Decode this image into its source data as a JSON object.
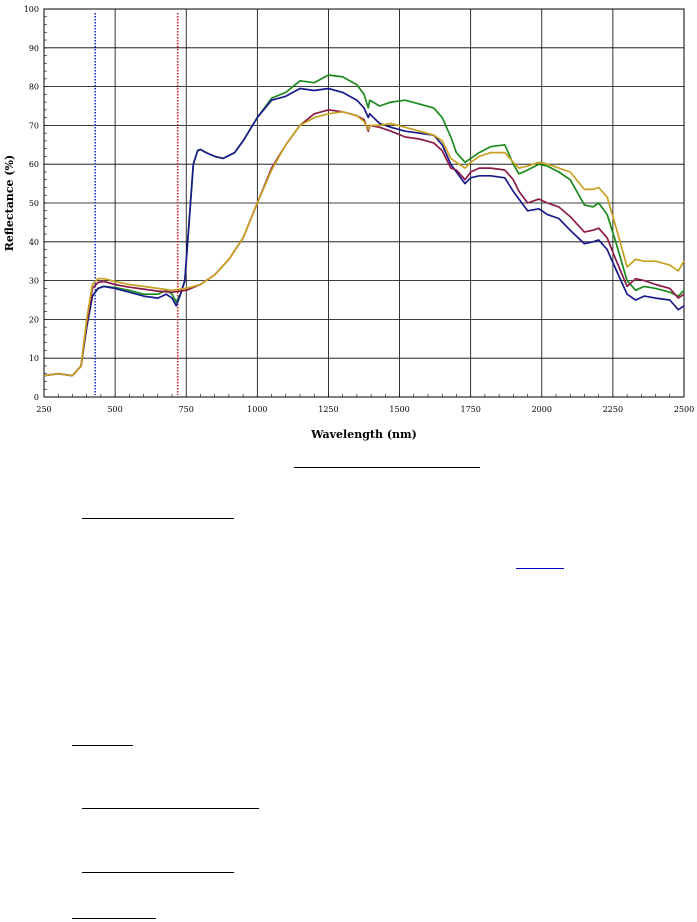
{
  "chart_data": {
    "type": "line",
    "title": "",
    "xlabel": "Wavelength (nm)",
    "ylabel": "Reflectance (%)",
    "xlim": [
      250,
      2500
    ],
    "ylim": [
      0,
      100
    ],
    "x_ticks": [
      250,
      500,
      750,
      1000,
      1250,
      1500,
      1750,
      2000,
      2250,
      2500
    ],
    "y_ticks": [
      0,
      10,
      20,
      30,
      40,
      50,
      60,
      70,
      80,
      90,
      100
    ],
    "x_minor_step": 50,
    "y_minor_step": 2,
    "grid": true,
    "legend": "none",
    "vertical_markers": [
      {
        "x": 430,
        "color": "#1f2fd0",
        "style": "dotted"
      },
      {
        "x": 720,
        "color": "#cc2222",
        "style": "dotted"
      }
    ],
    "series": [
      {
        "color": "#1c8a1c",
        "points": [
          [
            250,
            5.5
          ],
          [
            300,
            6
          ],
          [
            350,
            5.5
          ],
          [
            380,
            8
          ],
          [
            400,
            18
          ],
          [
            420,
            26
          ],
          [
            440,
            28
          ],
          [
            460,
            28.5
          ],
          [
            500,
            28.2
          ],
          [
            550,
            27.5
          ],
          [
            600,
            26.5
          ],
          [
            650,
            26.5
          ],
          [
            680,
            27.5
          ],
          [
            700,
            26.5
          ],
          [
            715,
            24.5
          ],
          [
            730,
            26.5
          ],
          [
            745,
            30
          ],
          [
            760,
            45
          ],
          [
            775,
            60
          ],
          [
            790,
            63.5
          ],
          [
            800,
            63.8
          ],
          [
            820,
            63
          ],
          [
            850,
            62
          ],
          [
            880,
            61.5
          ],
          [
            920,
            63
          ],
          [
            950,
            66
          ],
          [
            1000,
            72
          ],
          [
            1050,
            77
          ],
          [
            1100,
            78.5
          ],
          [
            1150,
            81.5
          ],
          [
            1200,
            81
          ],
          [
            1250,
            83
          ],
          [
            1300,
            82.5
          ],
          [
            1350,
            80.5
          ],
          [
            1375,
            78
          ],
          [
            1390,
            74.5
          ],
          [
            1395,
            76.5
          ],
          [
            1430,
            75
          ],
          [
            1470,
            76
          ],
          [
            1520,
            76.5
          ],
          [
            1570,
            75.5
          ],
          [
            1620,
            74.5
          ],
          [
            1650,
            72
          ],
          [
            1680,
            67
          ],
          [
            1700,
            63
          ],
          [
            1730,
            60.5
          ],
          [
            1750,
            61.5
          ],
          [
            1780,
            63
          ],
          [
            1820,
            64.5
          ],
          [
            1870,
            65
          ],
          [
            1900,
            60
          ],
          [
            1920,
            57.5
          ],
          [
            1950,
            58.5
          ],
          [
            1990,
            60
          ],
          [
            2020,
            59.5
          ],
          [
            2060,
            58
          ],
          [
            2100,
            56
          ],
          [
            2150,
            49.5
          ],
          [
            2180,
            49
          ],
          [
            2200,
            50
          ],
          [
            2230,
            47
          ],
          [
            2260,
            40
          ],
          [
            2300,
            30
          ],
          [
            2330,
            27.5
          ],
          [
            2360,
            28.5
          ],
          [
            2400,
            28
          ],
          [
            2450,
            27
          ],
          [
            2480,
            26
          ],
          [
            2500,
            27.5
          ]
        ]
      },
      {
        "color": "#1a1a8c",
        "points": [
          [
            250,
            5.5
          ],
          [
            300,
            6
          ],
          [
            350,
            5.5
          ],
          [
            380,
            8
          ],
          [
            400,
            18
          ],
          [
            420,
            26
          ],
          [
            440,
            28
          ],
          [
            460,
            28.5
          ],
          [
            500,
            28
          ],
          [
            550,
            27
          ],
          [
            600,
            26
          ],
          [
            650,
            25.5
          ],
          [
            680,
            26.5
          ],
          [
            700,
            25.5
          ],
          [
            715,
            23.5
          ],
          [
            730,
            26.5
          ],
          [
            745,
            30
          ],
          [
            760,
            45
          ],
          [
            775,
            60
          ],
          [
            790,
            63.5
          ],
          [
            800,
            63.8
          ],
          [
            820,
            63
          ],
          [
            850,
            62
          ],
          [
            880,
            61.5
          ],
          [
            920,
            63
          ],
          [
            950,
            66
          ],
          [
            1000,
            72
          ],
          [
            1050,
            76.5
          ],
          [
            1100,
            77.5
          ],
          [
            1150,
            79.5
          ],
          [
            1200,
            79
          ],
          [
            1250,
            79.5
          ],
          [
            1300,
            78.5
          ],
          [
            1350,
            76.5
          ],
          [
            1375,
            74.5
          ],
          [
            1390,
            72
          ],
          [
            1395,
            73
          ],
          [
            1430,
            70.5
          ],
          [
            1470,
            69.5
          ],
          [
            1520,
            68.5
          ],
          [
            1570,
            68
          ],
          [
            1620,
            67.5
          ],
          [
            1650,
            65
          ],
          [
            1680,
            60
          ],
          [
            1700,
            58
          ],
          [
            1730,
            55
          ],
          [
            1750,
            56.5
          ],
          [
            1780,
            57
          ],
          [
            1820,
            57
          ],
          [
            1870,
            56.5
          ],
          [
            1900,
            53
          ],
          [
            1920,
            51
          ],
          [
            1950,
            48
          ],
          [
            1990,
            48.5
          ],
          [
            2020,
            47
          ],
          [
            2060,
            46
          ],
          [
            2100,
            43
          ],
          [
            2150,
            39.5
          ],
          [
            2180,
            40
          ],
          [
            2200,
            40.5
          ],
          [
            2230,
            38
          ],
          [
            2260,
            33
          ],
          [
            2300,
            26.5
          ],
          [
            2330,
            25
          ],
          [
            2360,
            26
          ],
          [
            2400,
            25.5
          ],
          [
            2450,
            25
          ],
          [
            2480,
            22.5
          ],
          [
            2500,
            23.5
          ]
        ]
      },
      {
        "color": "#8b1a4a",
        "points": [
          [
            250,
            5.5
          ],
          [
            300,
            6
          ],
          [
            350,
            5.5
          ],
          [
            380,
            8
          ],
          [
            400,
            19
          ],
          [
            420,
            28
          ],
          [
            440,
            29.5
          ],
          [
            460,
            29.8
          ],
          [
            500,
            29
          ],
          [
            550,
            28.3
          ],
          [
            600,
            27.8
          ],
          [
            650,
            27.3
          ],
          [
            700,
            27
          ],
          [
            750,
            27.5
          ],
          [
            800,
            29
          ],
          [
            850,
            31.5
          ],
          [
            900,
            35.5
          ],
          [
            950,
            41
          ],
          [
            1000,
            50
          ],
          [
            1050,
            59
          ],
          [
            1100,
            65
          ],
          [
            1150,
            70
          ],
          [
            1200,
            73
          ],
          [
            1250,
            74
          ],
          [
            1300,
            73.5
          ],
          [
            1350,
            72.5
          ],
          [
            1375,
            71.5
          ],
          [
            1390,
            68.5
          ],
          [
            1395,
            70
          ],
          [
            1430,
            69.5
          ],
          [
            1470,
            68.5
          ],
          [
            1520,
            67
          ],
          [
            1570,
            66.5
          ],
          [
            1620,
            65.5
          ],
          [
            1650,
            63.5
          ],
          [
            1680,
            59
          ],
          [
            1700,
            58.5
          ],
          [
            1730,
            56
          ],
          [
            1750,
            58
          ],
          [
            1780,
            59
          ],
          [
            1820,
            59
          ],
          [
            1870,
            58.5
          ],
          [
            1900,
            56
          ],
          [
            1920,
            53
          ],
          [
            1950,
            50
          ],
          [
            1990,
            51
          ],
          [
            2020,
            50
          ],
          [
            2060,
            49
          ],
          [
            2100,
            46.5
          ],
          [
            2150,
            42.5
          ],
          [
            2180,
            43
          ],
          [
            2200,
            43.5
          ],
          [
            2230,
            41
          ],
          [
            2260,
            35.5
          ],
          [
            2300,
            28.5
          ],
          [
            2330,
            30.5
          ],
          [
            2360,
            30
          ],
          [
            2400,
            29
          ],
          [
            2450,
            28
          ],
          [
            2480,
            25.5
          ],
          [
            2500,
            26.5
          ]
        ]
      },
      {
        "color": "#c8a020",
        "points": [
          [
            250,
            5.5
          ],
          [
            300,
            6
          ],
          [
            350,
            5.5
          ],
          [
            380,
            8
          ],
          [
            400,
            20
          ],
          [
            420,
            29
          ],
          [
            440,
            30.5
          ],
          [
            460,
            30.5
          ],
          [
            500,
            29.8
          ],
          [
            550,
            29
          ],
          [
            600,
            28.5
          ],
          [
            650,
            28
          ],
          [
            700,
            27.5
          ],
          [
            750,
            28
          ],
          [
            800,
            29
          ],
          [
            850,
            31.5
          ],
          [
            900,
            35.5
          ],
          [
            950,
            41
          ],
          [
            1000,
            50
          ],
          [
            1050,
            58.5
          ],
          [
            1100,
            65
          ],
          [
            1150,
            70
          ],
          [
            1200,
            72
          ],
          [
            1250,
            73
          ],
          [
            1300,
            73.5
          ],
          [
            1350,
            72.5
          ],
          [
            1375,
            71
          ],
          [
            1390,
            69
          ],
          [
            1395,
            70
          ],
          [
            1430,
            70
          ],
          [
            1470,
            70.5
          ],
          [
            1520,
            69.5
          ],
          [
            1570,
            68.5
          ],
          [
            1620,
            67.5
          ],
          [
            1650,
            66
          ],
          [
            1680,
            61.5
          ],
          [
            1700,
            60.5
          ],
          [
            1730,
            59
          ],
          [
            1750,
            60.5
          ],
          [
            1780,
            62
          ],
          [
            1820,
            63
          ],
          [
            1870,
            63
          ],
          [
            1900,
            60.5
          ],
          [
            1920,
            59
          ],
          [
            1950,
            59.5
          ],
          [
            1990,
            60.5
          ],
          [
            2020,
            60
          ],
          [
            2060,
            59
          ],
          [
            2100,
            58
          ],
          [
            2150,
            53.5
          ],
          [
            2180,
            53.5
          ],
          [
            2200,
            54
          ],
          [
            2230,
            51.5
          ],
          [
            2260,
            44
          ],
          [
            2300,
            33.5
          ],
          [
            2330,
            35.5
          ],
          [
            2360,
            35
          ],
          [
            2400,
            35
          ],
          [
            2450,
            34
          ],
          [
            2480,
            32.5
          ],
          [
            2500,
            35
          ]
        ]
      }
    ]
  }
}
